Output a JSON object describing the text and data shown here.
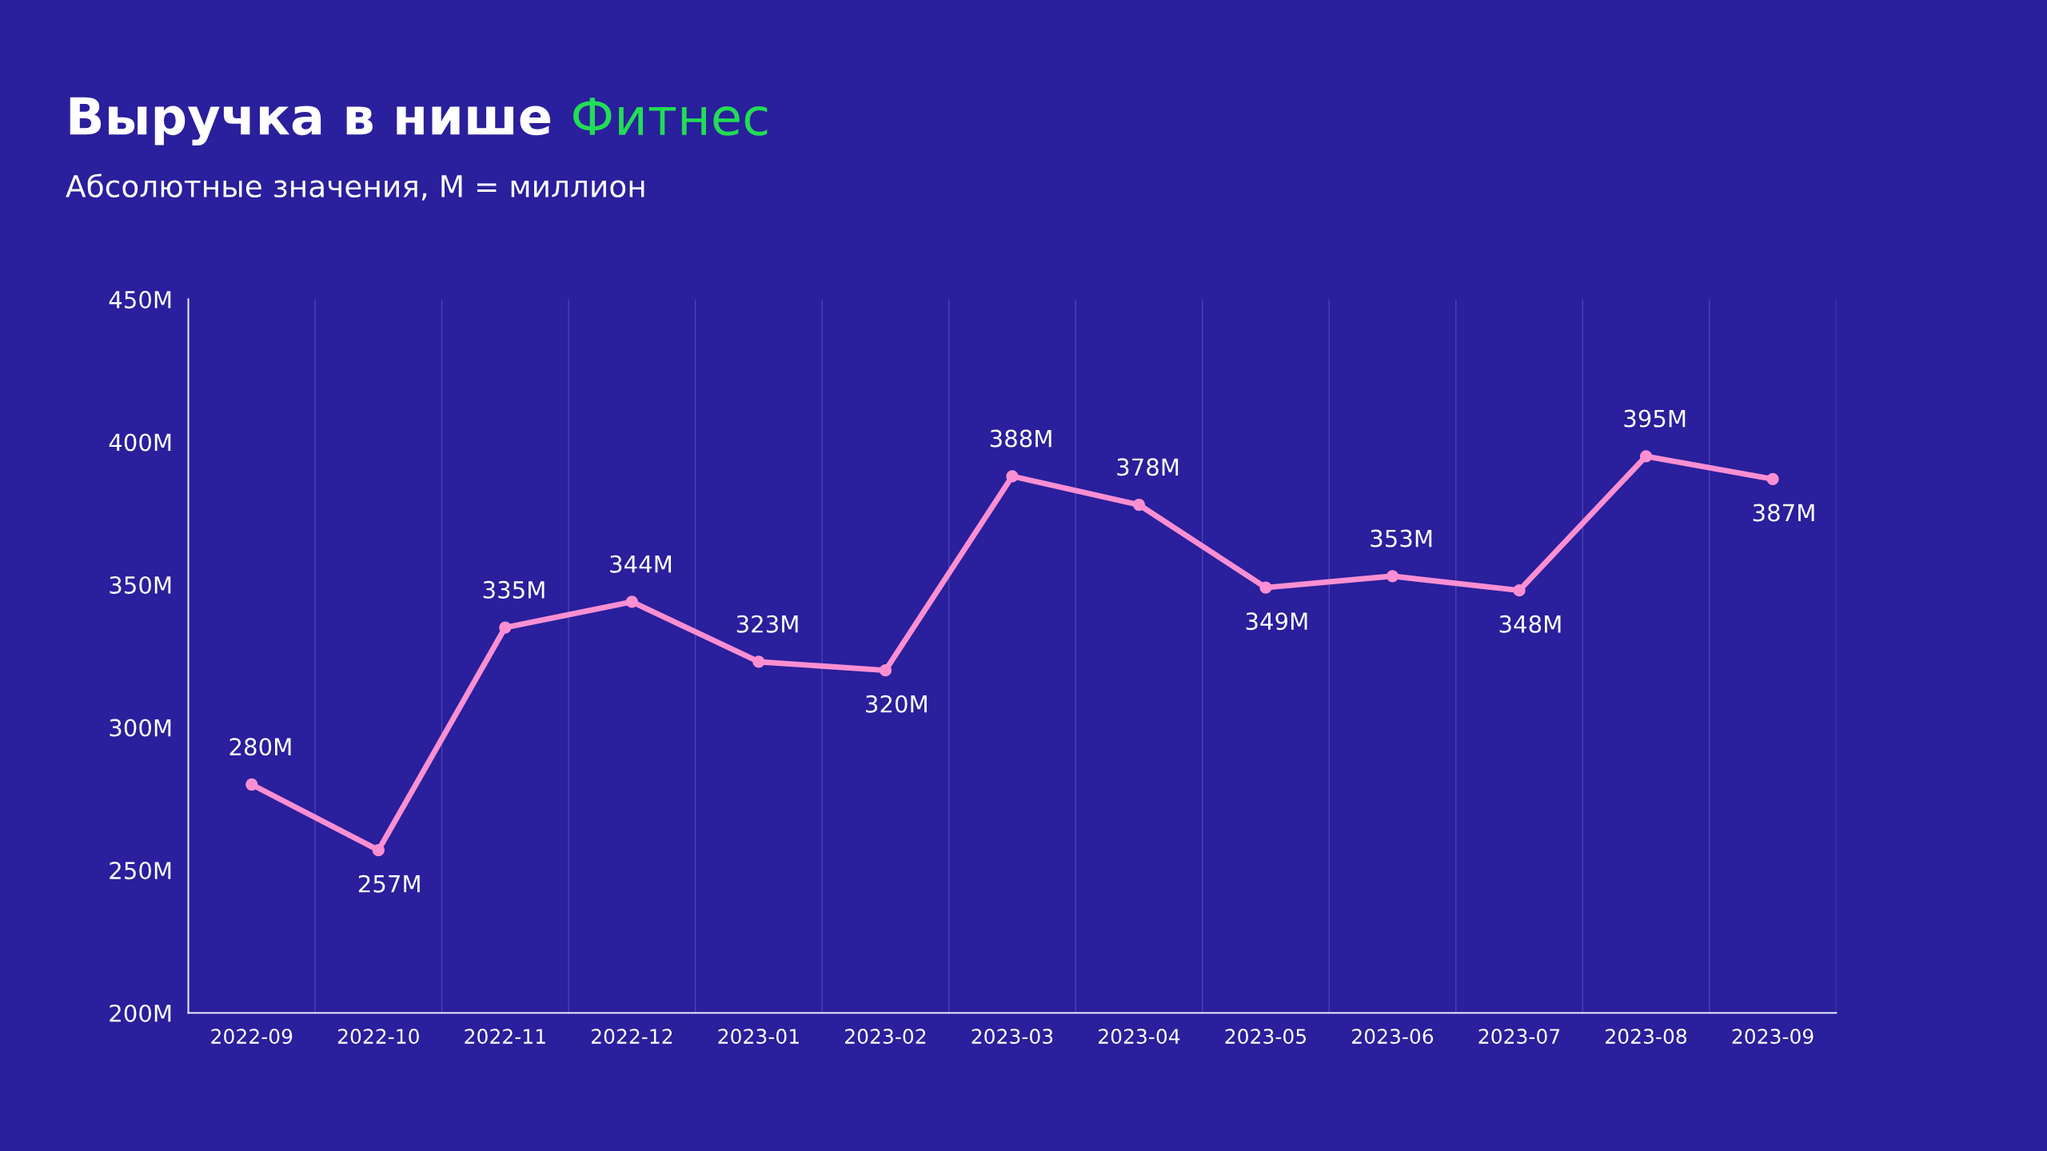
{
  "chart_data": {
    "type": "line",
    "title": "Выручка в нише Фитнес",
    "subtitle": "Абсолютные значения, M = миллион",
    "categories": [
      "2022-09",
      "2022-10",
      "2022-11",
      "2022-12",
      "2023-01",
      "2023-02",
      "2023-03",
      "2023-04",
      "2023-05",
      "2023-06",
      "2023-07",
      "2023-08",
      "2023-09"
    ],
    "series": [
      {
        "color": "#fb8fd2",
        "values": [
          280,
          257,
          335,
          344,
          323,
          320,
          388,
          378,
          349,
          353,
          348,
          395,
          387
        ],
        "value_labels": [
          "280M",
          "257M",
          "335M",
          "344M",
          "323M",
          "320M",
          "388M",
          "378M",
          "349M",
          "353M",
          "348M",
          "395M",
          "387M"
        ]
      }
    ],
    "ylim": [
      200,
      450
    ],
    "yticks": [
      {
        "value": 200,
        "label": "200M"
      },
      {
        "value": 250,
        "label": "250M"
      },
      {
        "value": 300,
        "label": "300M"
      },
      {
        "value": 350,
        "label": "350M"
      },
      {
        "value": 400,
        "label": "400M"
      },
      {
        "value": 450,
        "label": "450M"
      }
    ],
    "grid": "x",
    "marker": "circle",
    "line_style": "solid",
    "legend": false
  }
}
